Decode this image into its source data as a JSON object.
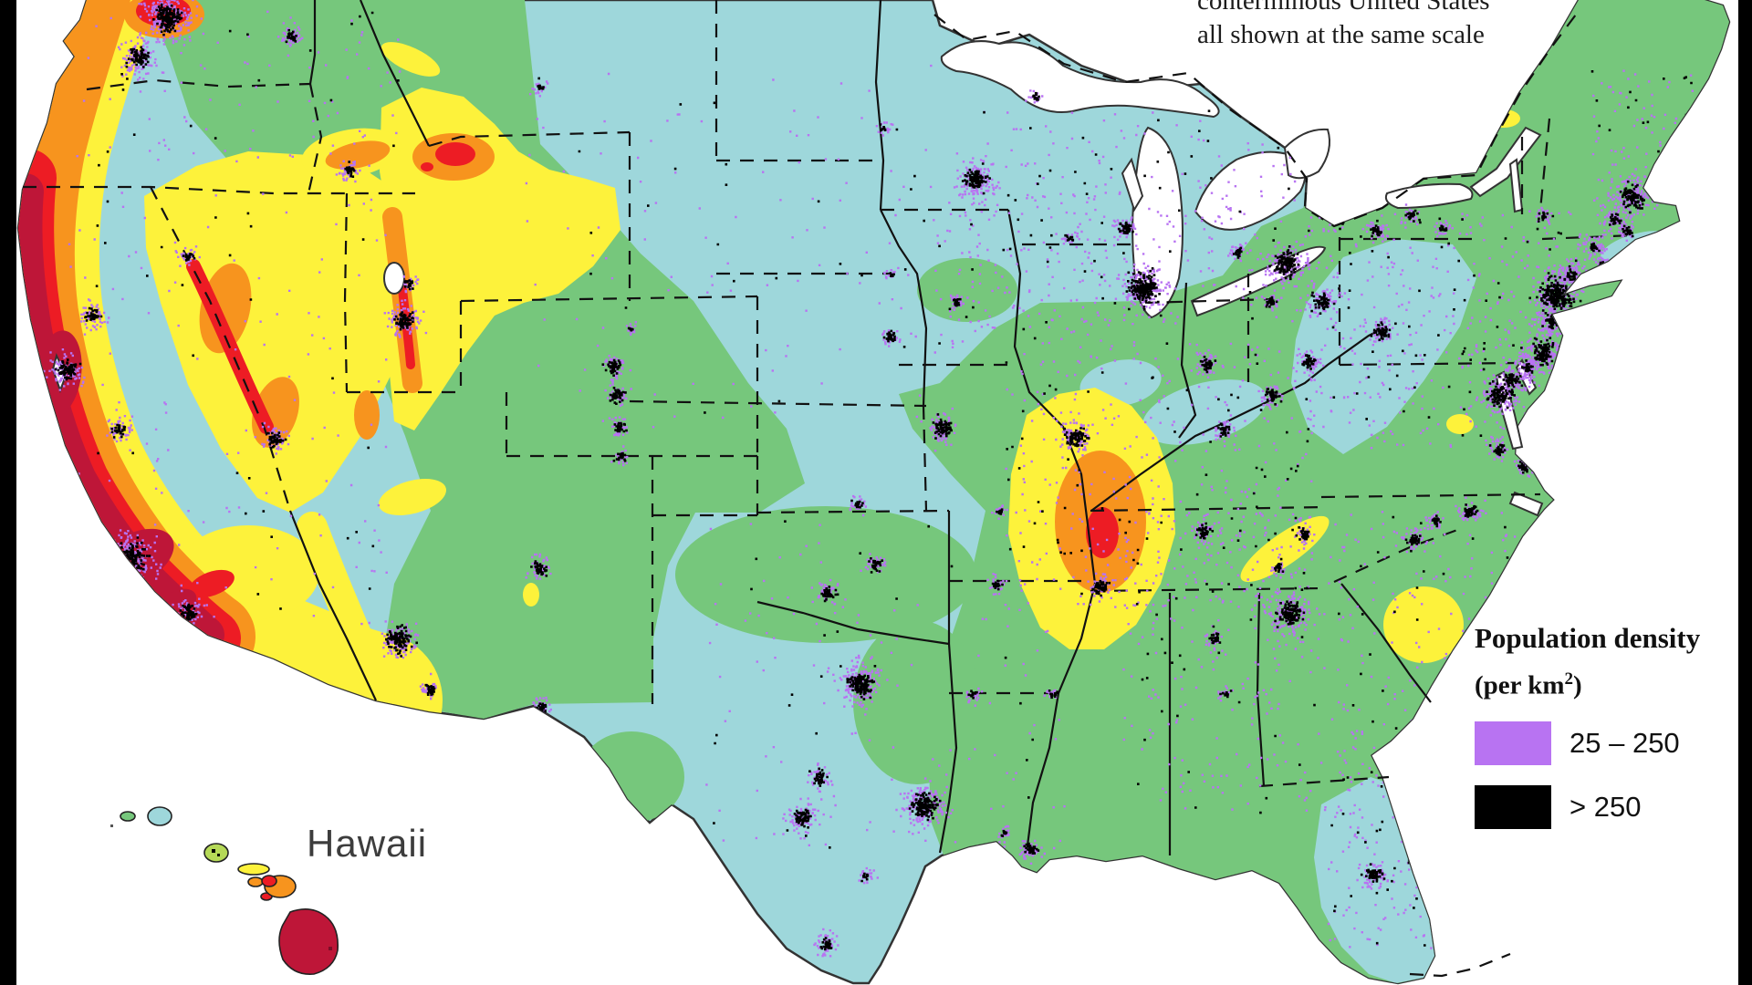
{
  "caption": {
    "line1": "conterminous United States",
    "line2": "all shown at the same scale"
  },
  "labels": {
    "hawaii": "Hawaii"
  },
  "legend": {
    "title": "Population density",
    "subtitle_pre": "(per km",
    "subtitle_sup": "2",
    "subtitle_post": ")",
    "items": [
      {
        "label": "25 – 250",
        "color": "#b873f2"
      },
      {
        "label": "> 250",
        "color": "#000000"
      }
    ]
  },
  "map": {
    "description": "Seismic hazard map of the conterminous United States with Hawaii inset, overlaid with population density",
    "hazard_palette": {
      "lowest": "#9ed7db",
      "low": "#76c77c",
      "moderate": "#fdf23b",
      "high": "#f7941e",
      "very_high": "#ed1c24",
      "extreme": "#be1638"
    },
    "population_palette": {
      "25_250": "#b873f2",
      "over_250": "#000000"
    },
    "background": "#ffffff",
    "letterbox_color": "#000000",
    "border_color": "#111111"
  }
}
